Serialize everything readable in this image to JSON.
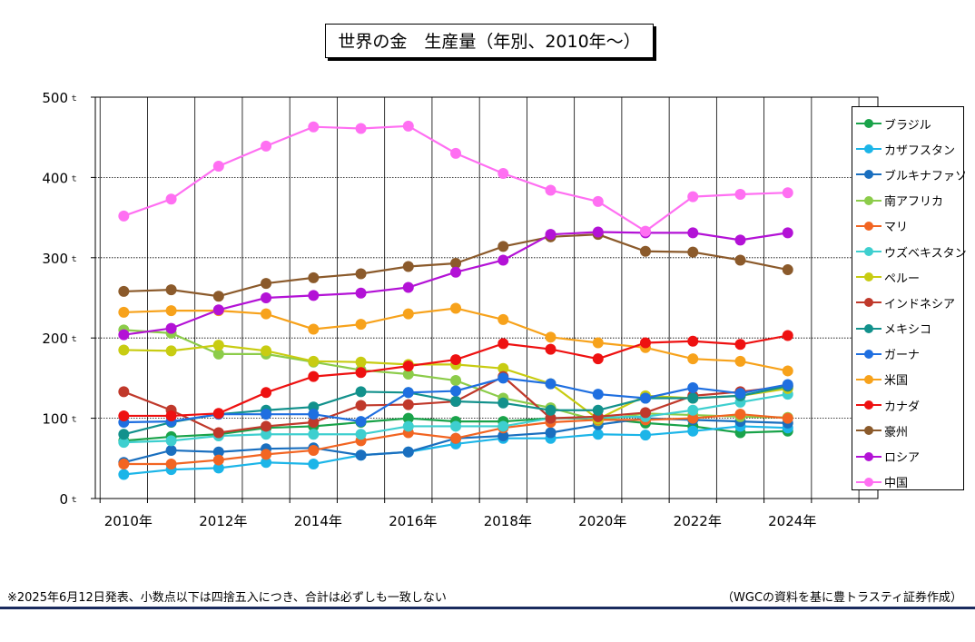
{
  "title": "世界の金　生産量（年別、2010年～）",
  "footnote": "※2025年6月12日発表、小数点以下は四捨五入につき、合計は必ずしも一致しない",
  "source": "（WGCの資料を基に豊トラスティ証券作成）",
  "chart_data": {
    "type": "line",
    "x": [
      2010,
      2011,
      2012,
      2013,
      2014,
      2015,
      2016,
      2017,
      2018,
      2019,
      2020,
      2021,
      2022,
      2023,
      2024
    ],
    "xticks": [
      {
        "value": 2010,
        "label": "2010年"
      },
      {
        "value": 2012,
        "label": "2012年"
      },
      {
        "value": 2014,
        "label": "2014年"
      },
      {
        "value": 2016,
        "label": "2016年"
      },
      {
        "value": 2018,
        "label": "2018年"
      },
      {
        "value": 2020,
        "label": "2020年"
      },
      {
        "value": 2022,
        "label": "2022年"
      },
      {
        "value": 2024,
        "label": "2024年"
      }
    ],
    "yticks": [
      {
        "value": 0,
        "label": "0"
      },
      {
        "value": 100,
        "label": "100"
      },
      {
        "value": 200,
        "label": "200"
      },
      {
        "value": 300,
        "label": "300"
      },
      {
        "value": 400,
        "label": "400"
      },
      {
        "value": 500,
        "label": "500"
      }
    ],
    "yunit": "ｔ",
    "xlim": [
      2009.4,
      2025.9
    ],
    "ylim": [
      0,
      500
    ],
    "grid": true,
    "legend_position": "right",
    "series": [
      {
        "name": "ブラジル",
        "color": "#1aa34a",
        "values": [
          72,
          77,
          80,
          88,
          90,
          95,
          100,
          96,
          96,
          100,
          100,
          94,
          90,
          82,
          84
        ]
      },
      {
        "name": "カザフスタン",
        "color": "#1cb5e8",
        "values": [
          30,
          36,
          38,
          45,
          43,
          54,
          58,
          68,
          75,
          75,
          80,
          79,
          84,
          90,
          88
        ]
      },
      {
        "name": "ブルキナファソ",
        "color": "#1a6fbf",
        "values": [
          45,
          60,
          58,
          62,
          63,
          54,
          58,
          75,
          78,
          82,
          92,
          100,
          98,
          96,
          94
        ]
      },
      {
        "name": "南アフリカ",
        "color": "#8ccc4a",
        "values": [
          210,
          206,
          180,
          180,
          170,
          160,
          155,
          147,
          125,
          113,
          97,
          106,
          104,
          102,
          101
        ]
      },
      {
        "name": "マリ",
        "color": "#f26522",
        "values": [
          43,
          43,
          48,
          55,
          60,
          72,
          82,
          75,
          88,
          95,
          98,
          98,
          100,
          105,
          100
        ]
      },
      {
        "name": "ウズベキスタン",
        "color": "#3ecfcf",
        "values": [
          70,
          72,
          78,
          80,
          80,
          80,
          90,
          90,
          90,
          100,
          101,
          102,
          110,
          120,
          130
        ]
      },
      {
        "name": "ペルー",
        "color": "#c8cc12",
        "values": [
          185,
          184,
          191,
          184,
          171,
          170,
          167,
          167,
          162,
          143,
          99,
          128,
          125,
          128,
          137
        ]
      },
      {
        "name": "インドネシア",
        "color": "#c0392b",
        "values": [
          133,
          110,
          82,
          90,
          95,
          116,
          117,
          121,
          152,
          100,
          102,
          107,
          128,
          133,
          140
        ]
      },
      {
        "name": "メキシコ",
        "color": "#12918c",
        "values": [
          80,
          95,
          105,
          110,
          114,
          133,
          132,
          121,
          119,
          110,
          110,
          125,
          125,
          128,
          140
        ]
      },
      {
        "name": "ガーナ",
        "color": "#1f6fe0",
        "values": [
          95,
          96,
          105,
          105,
          105,
          96,
          132,
          134,
          150,
          143,
          130,
          125,
          138,
          131,
          142
        ]
      },
      {
        "name": "米国",
        "color": "#f7a21b",
        "values": [
          232,
          234,
          234,
          230,
          211,
          217,
          230,
          237,
          223,
          201,
          194,
          188,
          174,
          171,
          159
        ]
      },
      {
        "name": "カナダ",
        "color": "#ee1111",
        "values": [
          103,
          103,
          106,
          132,
          152,
          157,
          165,
          173,
          193,
          186,
          174,
          194,
          196,
          192,
          203
        ]
      },
      {
        "name": "豪州",
        "color": "#8b5a2b",
        "values": [
          258,
          260,
          252,
          268,
          275,
          280,
          289,
          293,
          314,
          326,
          329,
          308,
          307,
          297,
          285
        ]
      },
      {
        "name": "ロシア",
        "color": "#b312d6",
        "values": [
          204,
          212,
          235,
          250,
          253,
          256,
          263,
          282,
          297,
          329,
          332,
          331,
          331,
          322,
          331
        ]
      },
      {
        "name": "中国",
        "color": "#ff6ff2",
        "values": [
          352,
          373,
          414,
          439,
          463,
          461,
          464,
          430,
          405,
          384,
          370,
          333,
          376,
          379,
          381
        ]
      }
    ]
  }
}
